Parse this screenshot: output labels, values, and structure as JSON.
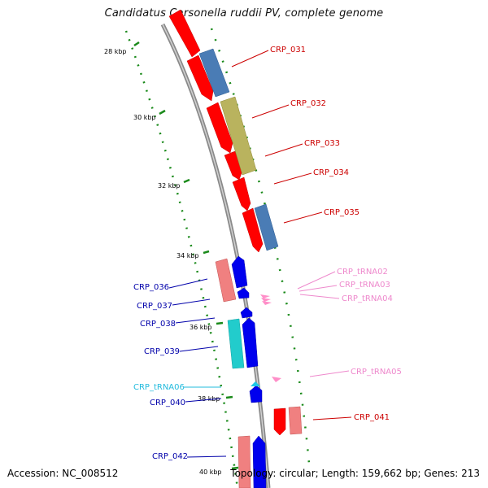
{
  "title": "Candidatus Carsonella ruddii PV, complete genome",
  "footer": {
    "accession": "Accession: NC_008512",
    "summary": "Topology: circular; Length: 159,662 bp; Genes: 213"
  },
  "colors": {
    "forward_cds": "#ff0000",
    "reverse_cds": "#0000ff",
    "trna_forward": "#ff8ec8",
    "trna_reverse": "#1ec8e6",
    "backbone": "#888888",
    "tick": "#1a8a1a",
    "label_red": "#cc0000",
    "label_blue": "#0000aa",
    "label_pink": "#ee88cc",
    "label_cyan": "#22bbdd"
  },
  "ticks": [
    "28 kbp",
    "30 kbp",
    "32 kbp",
    "34 kbp",
    "36 kbp",
    "38 kbp",
    "40 kbp"
  ],
  "features": [
    {
      "label": "CRP_031",
      "strand": "+",
      "type": "cds"
    },
    {
      "label": "CRP_032",
      "strand": "+",
      "type": "cds"
    },
    {
      "label": "CRP_033",
      "strand": "+",
      "type": "cds"
    },
    {
      "label": "CRP_034",
      "strand": "+",
      "type": "cds"
    },
    {
      "label": "CRP_035",
      "strand": "+",
      "type": "cds"
    },
    {
      "label": "CRP_tRNA02",
      "strand": "+",
      "type": "trna"
    },
    {
      "label": "CRP_tRNA03",
      "strand": "+",
      "type": "trna"
    },
    {
      "label": "CRP_tRNA04",
      "strand": "+",
      "type": "trna"
    },
    {
      "label": "CRP_036",
      "strand": "-",
      "type": "cds"
    },
    {
      "label": "CRP_037",
      "strand": "-",
      "type": "cds"
    },
    {
      "label": "CRP_038",
      "strand": "-",
      "type": "cds"
    },
    {
      "label": "CRP_039",
      "strand": "-",
      "type": "cds"
    },
    {
      "label": "CRP_tRNA05",
      "strand": "+",
      "type": "trna"
    },
    {
      "label": "CRP_tRNA06",
      "strand": "-",
      "type": "trna"
    },
    {
      "label": "CRP_040",
      "strand": "-",
      "type": "cds"
    },
    {
      "label": "CRP_041",
      "strand": "+",
      "type": "cds"
    },
    {
      "label": "CRP_042",
      "strand": "-",
      "type": "cds"
    }
  ]
}
